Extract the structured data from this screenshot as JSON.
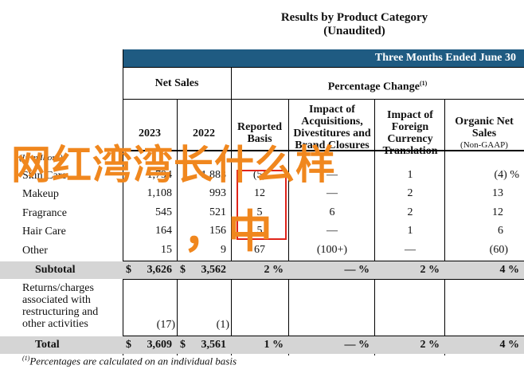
{
  "title_line1": "Results by Product Category",
  "title_line2": "(Unaudited)",
  "period_header": "Three Months Ended June 30",
  "net_sales_header": "Net Sales",
  "pct_change_header": "Percentage Change",
  "pct_sup": "(1)",
  "columns": {
    "y2023": "2023",
    "y2022": "2022",
    "reported": "Reported Basis",
    "impact_acq": "Impact of Acquisitions, Divestitures and Brand Closures",
    "impact_fx": "Impact of Foreign Currency Translation",
    "organic": "Organic Net Sales",
    "organic_sup": "(Non-GAAP)"
  },
  "units_label": "(In millions)",
  "rows": [
    {
      "label": "Skin Care",
      "v2023": "1,794",
      "v2022": "1,883",
      "reported": "(5)",
      "acq": "—",
      "fx": "1",
      "organic": "(4) %"
    },
    {
      "label": "Makeup",
      "v2023": "1,108",
      "v2022": "993",
      "reported": "12",
      "acq": "—",
      "fx": "2",
      "organic": "13"
    },
    {
      "label": "Fragrance",
      "v2023": "545",
      "v2022": "521",
      "reported": "5",
      "acq": "6",
      "fx": "2",
      "organic": "12"
    },
    {
      "label": "Hair Care",
      "v2023": "164",
      "v2022": "156",
      "reported": "5",
      "acq": "—",
      "fx": "1",
      "organic": "6"
    },
    {
      "label": "Other",
      "v2023": "15",
      "v2022": "9",
      "reported": "67",
      "acq": "(100+)",
      "fx": "—",
      "organic": "(60)"
    }
  ],
  "subtotal": {
    "label": "Subtotal",
    "cur": "$",
    "v2023": "3,626",
    "v2022": "3,562",
    "reported": "2 %",
    "acq": "— %",
    "fx": "2 %",
    "organic": "4 %"
  },
  "returns": {
    "label": "Returns/charges associated with restructuring and other activities",
    "v2023": "(17)",
    "v2022": "(1)"
  },
  "total": {
    "label": "Total",
    "cur": "$",
    "v2023": "3,609",
    "v2022": "3,561",
    "reported": "1 %",
    "acq": "— %",
    "fx": "2 %",
    "organic": "4 %"
  },
  "footnote_sup": "(1)",
  "footnote": "Percentages are calculated on an individual basis",
  "watermark": "网红湾湾长什么样",
  "watermark2": "，中"
}
